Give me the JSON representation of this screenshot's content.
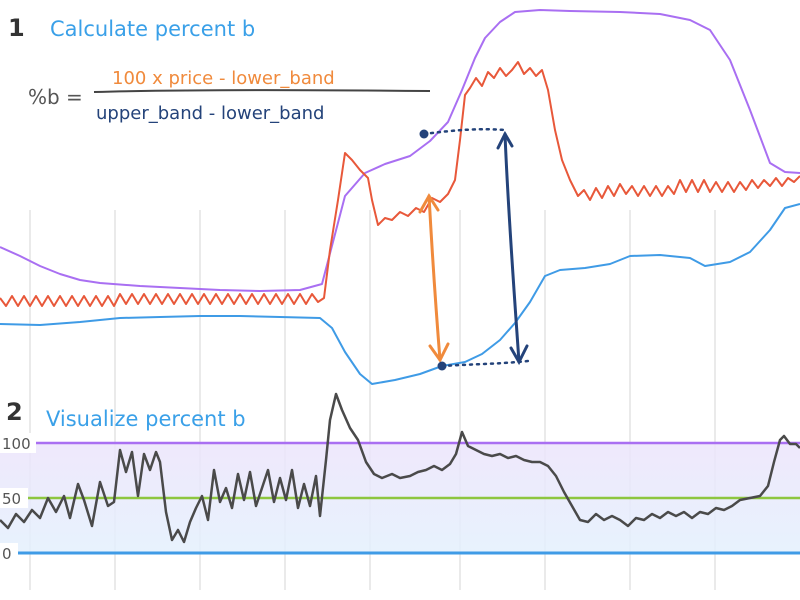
{
  "section1": {
    "number": "1",
    "title": "Calculate percent b",
    "formula": {
      "lhs": "%b =",
      "numerator": "100 x price - lower_band",
      "denominator": "upper_band - lower_band"
    }
  },
  "section2": {
    "number": "2",
    "title": "Visualize percent b"
  },
  "axis2": {
    "tick_labels": [
      "100",
      "50",
      "0"
    ]
  },
  "colors": {
    "upper_band": "#a96ff2",
    "price": "#e8583a",
    "lower_band": "#3f9be6",
    "percent_b": "#4a4a4a",
    "line_100": "#a96ff2",
    "line_50": "#8dc63f",
    "line_0": "#3f9be6",
    "numerator_text": "#f08a3c",
    "denominator_text": "#24437a",
    "title_text": "#3aa0e8"
  }
}
